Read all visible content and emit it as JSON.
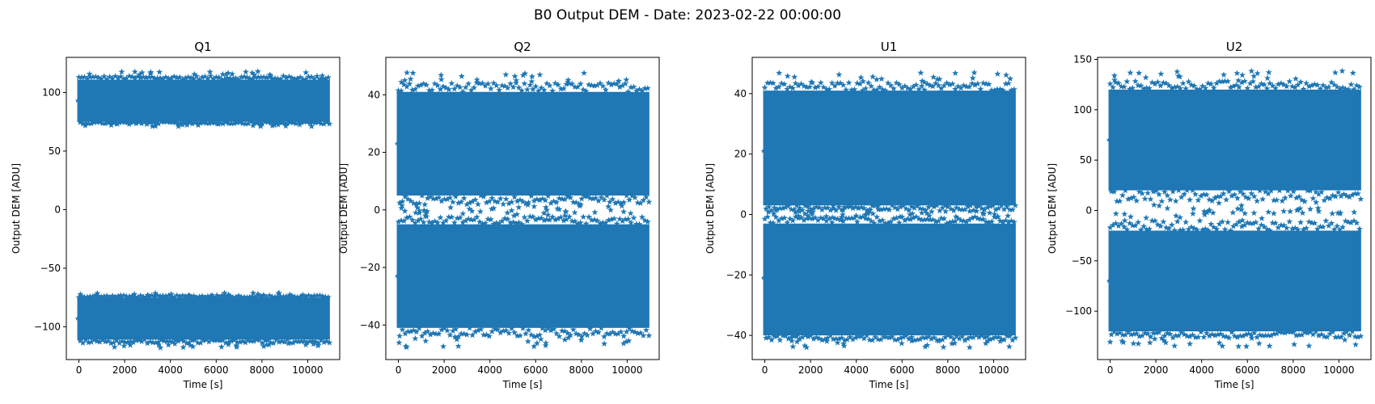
{
  "figure": {
    "title": "B0 Output DEM - Date: 2023-02-22 00:00:00"
  },
  "colors": {
    "marker": "#1f77b4",
    "axes": "#000000",
    "background": "#ffffff"
  },
  "chart_data": [
    {
      "type": "scatter",
      "title": "Q1",
      "xlabel": "Time [s]",
      "ylabel": "Output DEM [ADU]",
      "marker": "star",
      "xlim": [
        -550,
        11400
      ],
      "ylim": [
        -128,
        130
      ],
      "xticks": [
        0,
        2000,
        4000,
        6000,
        8000,
        10000
      ],
      "yticks": [
        -100,
        -50,
        0,
        50,
        100
      ],
      "x_range": [
        0,
        10900
      ],
      "bands": [
        {
          "center": 93,
          "low": 75,
          "high": 111,
          "min_outlier": 71,
          "max_outlier": 118
        },
        {
          "center": -93,
          "low": -111,
          "high": -75,
          "min_outlier": -118,
          "max_outlier": -71
        }
      ]
    },
    {
      "type": "scatter",
      "title": "Q2",
      "xlabel": "Time [s]",
      "ylabel": "Output DEM [ADU]",
      "marker": "star",
      "xlim": [
        -550,
        11400
      ],
      "ylim": [
        -52,
        53
      ],
      "xticks": [
        0,
        2000,
        4000,
        6000,
        8000,
        10000
      ],
      "yticks": [
        -40,
        -20,
        0,
        20,
        40
      ],
      "x_range": [
        0,
        10900
      ],
      "bands": [
        {
          "center": 23,
          "low": 5,
          "high": 41,
          "min_outlier": -2,
          "max_outlier": 48
        },
        {
          "center": -23,
          "low": -41,
          "high": -5,
          "min_outlier": -48,
          "max_outlier": 1
        }
      ]
    },
    {
      "type": "scatter",
      "title": "U1",
      "xlabel": "Time [s]",
      "ylabel": "Output DEM [ADU]",
      "marker": "star",
      "xlim": [
        -550,
        11400
      ],
      "ylim": [
        -48,
        52
      ],
      "xticks": [
        0,
        2000,
        4000,
        6000,
        8000,
        10000
      ],
      "yticks": [
        -40,
        -20,
        0,
        20,
        40
      ],
      "x_range": [
        0,
        10900
      ],
      "bands": [
        {
          "center": 21,
          "low": 3,
          "high": 41,
          "min_outlier": -1,
          "max_outlier": 47
        },
        {
          "center": -21,
          "low": -40,
          "high": -3,
          "min_outlier": -44,
          "max_outlier": 2
        }
      ]
    },
    {
      "type": "scatter",
      "title": "U2",
      "xlabel": "Time [s]",
      "ylabel": "Output DEM [ADU]",
      "marker": "star",
      "xlim": [
        -550,
        11400
      ],
      "ylim": [
        -148,
        152
      ],
      "xticks": [
        0,
        2000,
        4000,
        6000,
        8000,
        10000
      ],
      "yticks": [
        -100,
        -50,
        0,
        50,
        100,
        150
      ],
      "x_range": [
        0,
        10900
      ],
      "bands": [
        {
          "center": 70,
          "low": 20,
          "high": 120,
          "min_outlier": -5,
          "max_outlier": 139
        },
        {
          "center": -70,
          "low": -120,
          "high": -20,
          "min_outlier": -135,
          "max_outlier": 2
        }
      ]
    }
  ]
}
